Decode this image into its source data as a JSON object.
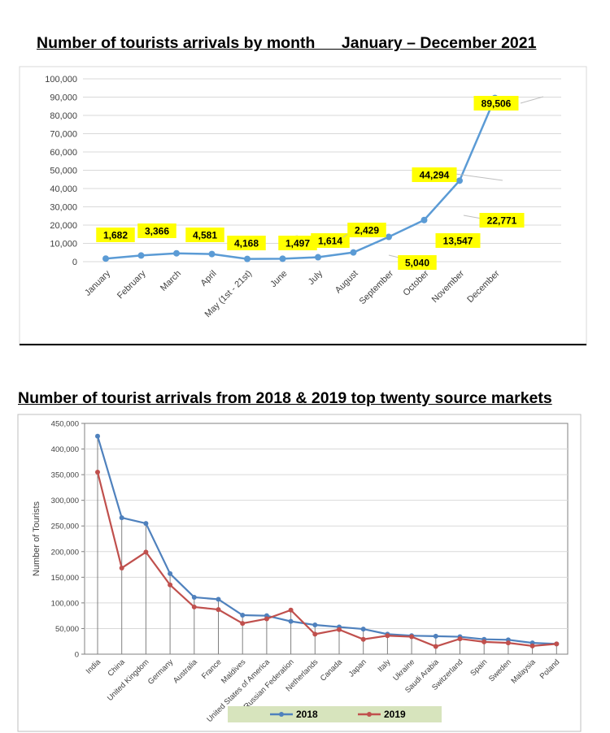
{
  "chart_data": [
    {
      "type": "line",
      "title": "Number of tourists arrivals by month      January – December 2021",
      "categories": [
        "January",
        "February",
        "March",
        "April",
        "May (1st - 21st)",
        "June",
        "July",
        "August",
        "September",
        "October",
        "November",
        "December"
      ],
      "series": [
        {
          "values": [
            1682,
            3366,
            4581,
            4168,
            1497,
            1614,
            2429,
            5040,
            13547,
            22771,
            44294,
            89506
          ]
        }
      ],
      "data_labels": [
        "1,682",
        "3,366",
        "4,581",
        "4,168",
        "1,497",
        "1,614",
        "2,429",
        "5,040",
        "13,547",
        "22,771",
        "44,294",
        "89,506"
      ],
      "yticks": [
        "0",
        "10,000",
        "20,000",
        "30,000",
        "40,000",
        "50,000",
        "60,000",
        "70,000",
        "80,000",
        "90,000",
        "100,000"
      ],
      "ylim": [
        0,
        100000
      ],
      "grid": true,
      "line_color": "#5B9BD5",
      "label_bg": "#FFFF00"
    },
    {
      "type": "line",
      "title": "Number of tourist arrivals from 2018 & 2019 top twenty source markets",
      "ylabel": "Number of Tourists",
      "categories": [
        "India",
        "China",
        "United Kingdom",
        "Germany",
        "Australia",
        "France",
        "Maldives",
        "United States of America",
        "Russian Federation",
        "Netherlands",
        "Canada",
        "Japan",
        "Italy",
        "Ukraine",
        "Saudi Arabia",
        "Switzerland",
        "Spain",
        "Sweden",
        "Malaysia",
        "Poland"
      ],
      "series": [
        {
          "name": "2018",
          "color": "#4F81BD",
          "values": [
            425000,
            266000,
            255000,
            157000,
            111000,
            107000,
            76000,
            75000,
            64000,
            57000,
            53000,
            49000,
            39000,
            36000,
            35000,
            34000,
            29000,
            28000,
            22000,
            20000
          ]
        },
        {
          "name": "2019",
          "color": "#C0504D",
          "values": [
            355000,
            168000,
            199000,
            135000,
            92000,
            87000,
            60000,
            69000,
            86000,
            39000,
            48000,
            29000,
            36000,
            34000,
            15000,
            30000,
            24000,
            22000,
            16000,
            20000
          ]
        }
      ],
      "yticks": [
        "0",
        "50,000",
        "100,000",
        "150,000",
        "200,000",
        "250,000",
        "300,000",
        "350,000",
        "400,000",
        "450,000"
      ],
      "ylim": [
        0,
        450000
      ],
      "grid": true,
      "legend_position": "bottom",
      "legend_bg": "#D7E4BD"
    }
  ]
}
